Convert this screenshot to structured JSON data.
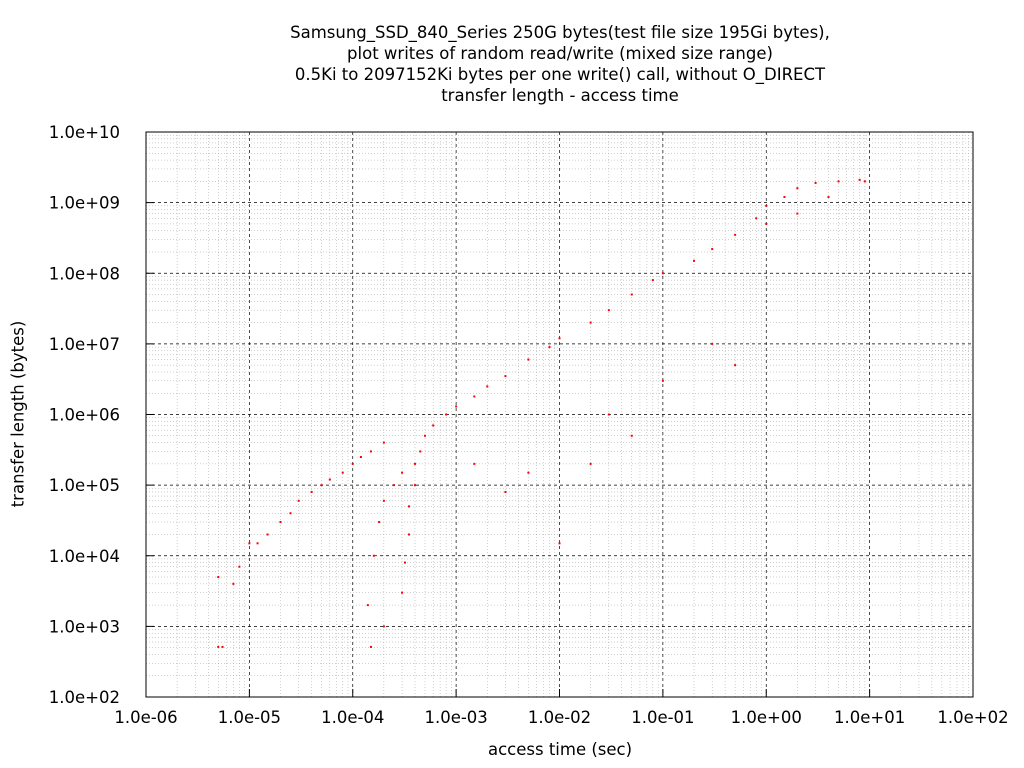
{
  "chart_data": {
    "type": "scatter",
    "title_lines": [
      "Samsung_SSD_840_Series 250G bytes(test file size 195Gi bytes),",
      "plot writes of random read/write (mixed size range)",
      "0.5Ki to 2097152Ki bytes per one write() call, without O_DIRECT",
      "transfer length - access time"
    ],
    "xlabel": "access time (sec)",
    "ylabel": "transfer length (bytes)",
    "x_scale": "log",
    "y_scale": "log",
    "xlim": [
      1e-06,
      100
    ],
    "ylim": [
      100,
      10000000000.0
    ],
    "x_ticks": [
      "1.0e-06",
      "1.0e-05",
      "1.0e-04",
      "1.0e-03",
      "1.0e-02",
      "1.0e-01",
      "1.0e+00",
      "1.0e+01",
      "1.0e+02"
    ],
    "y_ticks": [
      "1.0e+02",
      "1.0e+03",
      "1.0e+04",
      "1.0e+05",
      "1.0e+06",
      "1.0e+07",
      "1.0e+08",
      "1.0e+09",
      "1.0e+10"
    ],
    "grid": true,
    "marker_color": "#ff0000",
    "series": [
      {
        "points": [
          [
            5e-06,
            5000.0
          ],
          [
            5e-06,
            512
          ],
          [
            5.5e-06,
            512
          ],
          [
            7e-06,
            4000.0
          ],
          [
            8e-06,
            7000.0
          ],
          [
            1e-05,
            15000.0
          ],
          [
            1.2e-05,
            15000.0
          ],
          [
            1.5e-05,
            20000.0
          ],
          [
            2e-05,
            30000.0
          ],
          [
            2.5e-05,
            40000.0
          ],
          [
            3e-05,
            60000.0
          ],
          [
            4e-05,
            80000.0
          ],
          [
            5e-05,
            100000.0
          ],
          [
            6e-05,
            120000.0
          ],
          [
            8e-05,
            150000.0
          ],
          [
            0.0001,
            200000.0
          ],
          [
            0.00012,
            250000.0
          ],
          [
            0.00015,
            300000.0
          ],
          [
            0.0002,
            400000.0
          ],
          [
            0.00014,
            2000.0
          ],
          [
            0.00015,
            512
          ],
          [
            0.00016,
            10000.0
          ],
          [
            0.00018,
            30000.0
          ],
          [
            0.0002,
            60000.0
          ],
          [
            0.00025,
            100000.0
          ],
          [
            0.0003,
            150000.0
          ],
          [
            0.0003,
            3000.0
          ],
          [
            0.00032,
            8000.0
          ],
          [
            0.00035,
            20000.0
          ],
          [
            0.00035,
            50000.0
          ],
          [
            0.0004,
            100000.0
          ],
          [
            0.0004,
            200000.0
          ],
          [
            0.00045,
            300000.0
          ],
          [
            0.0005,
            500000.0
          ],
          [
            0.0006,
            700000.0
          ],
          [
            0.0008,
            1000000.0
          ],
          [
            0.001,
            1300000.0
          ],
          [
            0.0015,
            1800000.0
          ],
          [
            0.002,
            2500000.0
          ],
          [
            0.003,
            3500000.0
          ],
          [
            0.005,
            6000000.0
          ],
          [
            0.008,
            9000000.0
          ],
          [
            0.01,
            12000000.0
          ],
          [
            0.02,
            20000000.0
          ],
          [
            0.03,
            30000000.0
          ],
          [
            0.05,
            50000000.0
          ],
          [
            0.08,
            80000000.0
          ],
          [
            0.1,
            100000000.0
          ],
          [
            0.2,
            150000000.0
          ],
          [
            0.3,
            220000000.0
          ],
          [
            0.5,
            350000000.0
          ],
          [
            0.8,
            600000000.0
          ],
          [
            1,
            900000000.0
          ],
          [
            1.5,
            1200000000.0
          ],
          [
            2,
            1600000000.0
          ],
          [
            3,
            1900000000.0
          ],
          [
            5,
            2000000000.0
          ],
          [
            8,
            2100000000.0
          ],
          [
            9,
            2000000000.0
          ],
          [
            0.005,
            150000.0
          ],
          [
            0.01,
            15000.0
          ],
          [
            0.02,
            200000.0
          ],
          [
            0.03,
            1000000.0
          ],
          [
            0.05,
            500000.0
          ],
          [
            0.1,
            3000000.0
          ],
          [
            0.3,
            10000000.0
          ],
          [
            0.5,
            5000000.0
          ],
          [
            1,
            500000000.0
          ],
          [
            2,
            700000000.0
          ],
          [
            4,
            1200000000.0
          ],
          [
            0.0015,
            200000.0
          ],
          [
            0.003,
            80000.0
          ],
          [
            0.0002,
            1000.0
          ]
        ]
      }
    ]
  }
}
